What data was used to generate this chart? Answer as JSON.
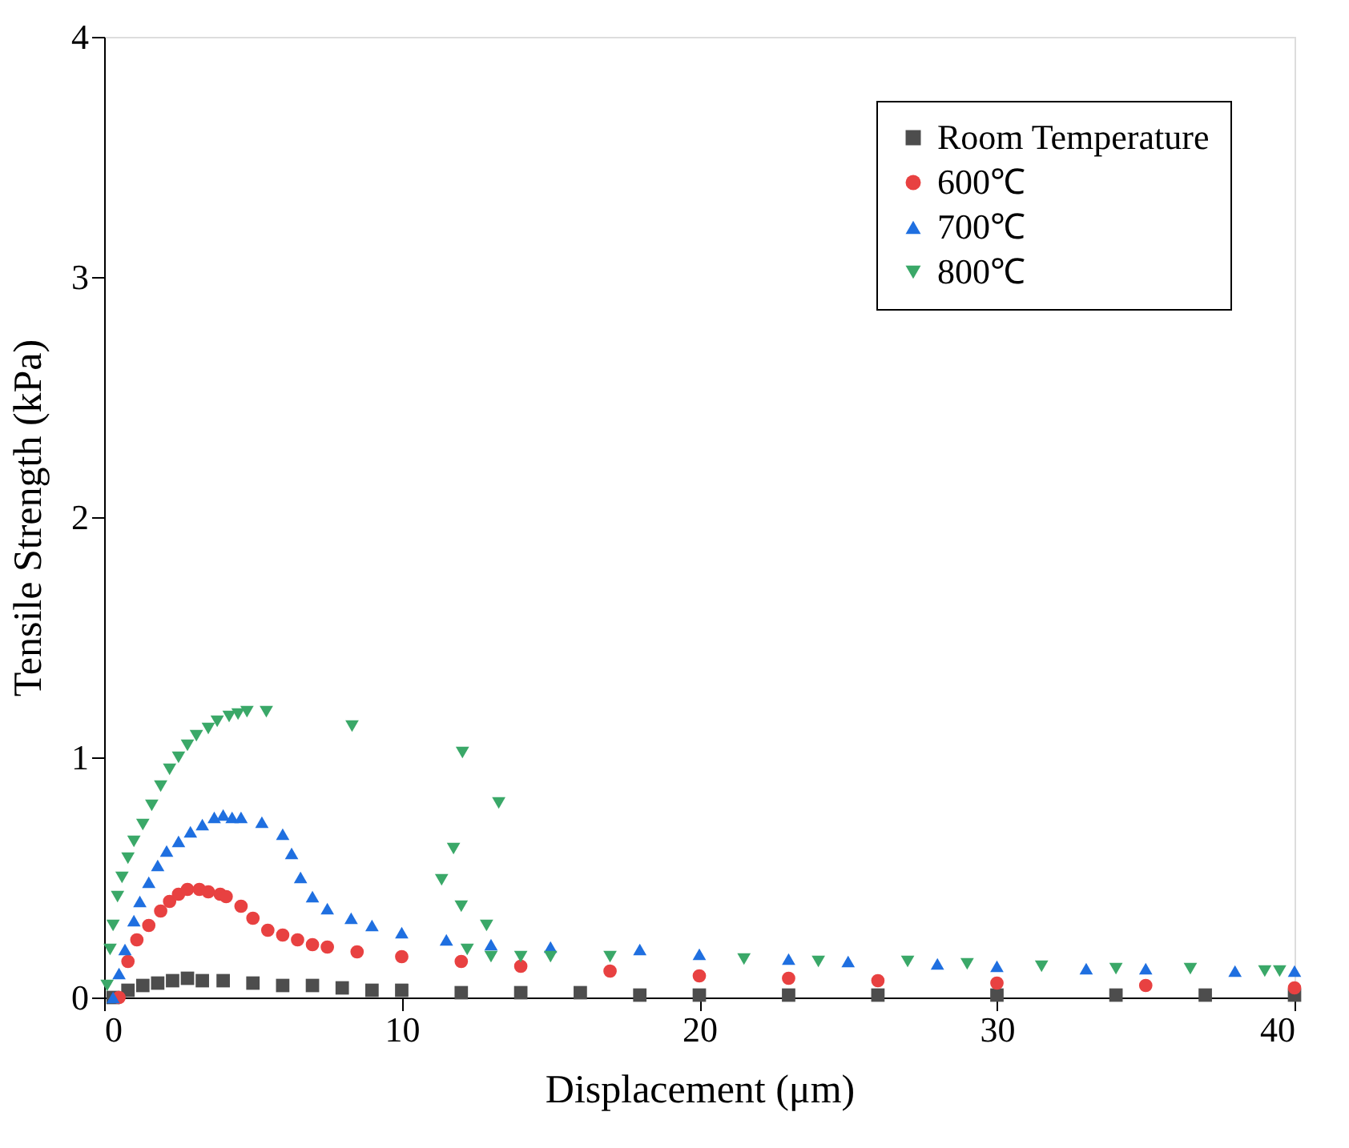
{
  "chart_data": {
    "type": "scatter",
    "xlabel": "Displacement (μm)",
    "ylabel": "Tensile Strength (kPa)",
    "xlim": [
      0,
      40
    ],
    "ylim": [
      0,
      4
    ],
    "xticks": [
      0,
      10,
      20,
      30,
      40
    ],
    "yticks": [
      0,
      1,
      2,
      3,
      4
    ],
    "grid": false,
    "legend": "top right",
    "series": [
      {
        "name": "Room Temperature",
        "color": "#4d4d4d",
        "marker": "square",
        "x": [
          0.3,
          0.8,
          1.3,
          1.8,
          2.3,
          2.8,
          3.3,
          4,
          5,
          6,
          7,
          8,
          9,
          10,
          12,
          14,
          16,
          18,
          20,
          23,
          26,
          30,
          34,
          37,
          40
        ],
        "values": [
          0,
          0.03,
          0.05,
          0.06,
          0.07,
          0.08,
          0.07,
          0.07,
          0.06,
          0.05,
          0.05,
          0.04,
          0.03,
          0.03,
          0.02,
          0.02,
          0.02,
          0.01,
          0.01,
          0.01,
          0.01,
          0.01,
          0.01,
          0.01,
          0.01
        ]
      },
      {
        "name": "600℃",
        "color": "#e84141",
        "marker": "circle",
        "x": [
          0.5,
          0.8,
          1.1,
          1.5,
          1.9,
          2.2,
          2.5,
          2.8,
          3.2,
          3.5,
          3.9,
          4.1,
          4.6,
          5,
          5.5,
          6,
          6.5,
          7,
          7.5,
          8.5,
          10,
          12,
          14,
          17,
          20,
          23,
          26,
          30,
          35,
          40
        ],
        "values": [
          0,
          0.15,
          0.24,
          0.3,
          0.36,
          0.4,
          0.43,
          0.45,
          0.45,
          0.44,
          0.43,
          0.42,
          0.38,
          0.33,
          0.28,
          0.26,
          0.24,
          0.22,
          0.21,
          0.19,
          0.17,
          0.15,
          0.13,
          0.11,
          0.09,
          0.08,
          0.07,
          0.06,
          0.05,
          0.04
        ]
      },
      {
        "name": "700℃",
        "color": "#1f6fe0",
        "marker": "triangle",
        "x": [
          0.3,
          0.5,
          0.7,
          1,
          1.2,
          1.5,
          1.8,
          2.1,
          2.5,
          2.9,
          3.3,
          3.7,
          4,
          4.3,
          4.6,
          5.3,
          6,
          6.3,
          6.6,
          7,
          7.5,
          8.3,
          9,
          10,
          11.5,
          13,
          15,
          18,
          20,
          23,
          25,
          28,
          30,
          33,
          35,
          38,
          40
        ],
        "values": [
          0,
          0.1,
          0.2,
          0.32,
          0.4,
          0.48,
          0.55,
          0.61,
          0.65,
          0.69,
          0.72,
          0.75,
          0.76,
          0.75,
          0.75,
          0.73,
          0.68,
          0.6,
          0.5,
          0.42,
          0.37,
          0.33,
          0.3,
          0.27,
          0.24,
          0.22,
          0.21,
          0.2,
          0.18,
          0.16,
          0.15,
          0.14,
          0.13,
          0.12,
          0.12,
          0.11,
          0.11
        ]
      },
      {
        "name": "800℃",
        "color": "#3aa868",
        "marker": "triangle-down",
        "x": [
          0.1,
          0.2,
          0.3,
          0.45,
          0.6,
          0.8,
          1,
          1.3,
          1.6,
          1.9,
          2.2,
          2.5,
          2.8,
          3.1,
          3.5,
          3.8,
          4.2,
          4.5,
          4.8,
          5.45,
          8.33,
          12.04,
          13.26,
          11.74,
          11.34,
          12,
          12.85,
          12.2,
          13,
          14,
          15,
          17,
          21.5,
          24,
          27,
          29,
          31.5,
          34,
          36.5,
          39,
          39.5
        ],
        "values": [
          0.05,
          0.2,
          0.3,
          0.42,
          0.5,
          0.58,
          0.65,
          0.72,
          0.8,
          0.88,
          0.95,
          1.0,
          1.05,
          1.09,
          1.12,
          1.15,
          1.17,
          1.18,
          1.19,
          1.19,
          1.13,
          1.02,
          0.81,
          0.62,
          0.49,
          0.38,
          0.3,
          0.2,
          0.17,
          0.17,
          0.17,
          0.17,
          0.16,
          0.15,
          0.15,
          0.14,
          0.13,
          0.12,
          0.12,
          0.11,
          0.11
        ]
      }
    ]
  }
}
